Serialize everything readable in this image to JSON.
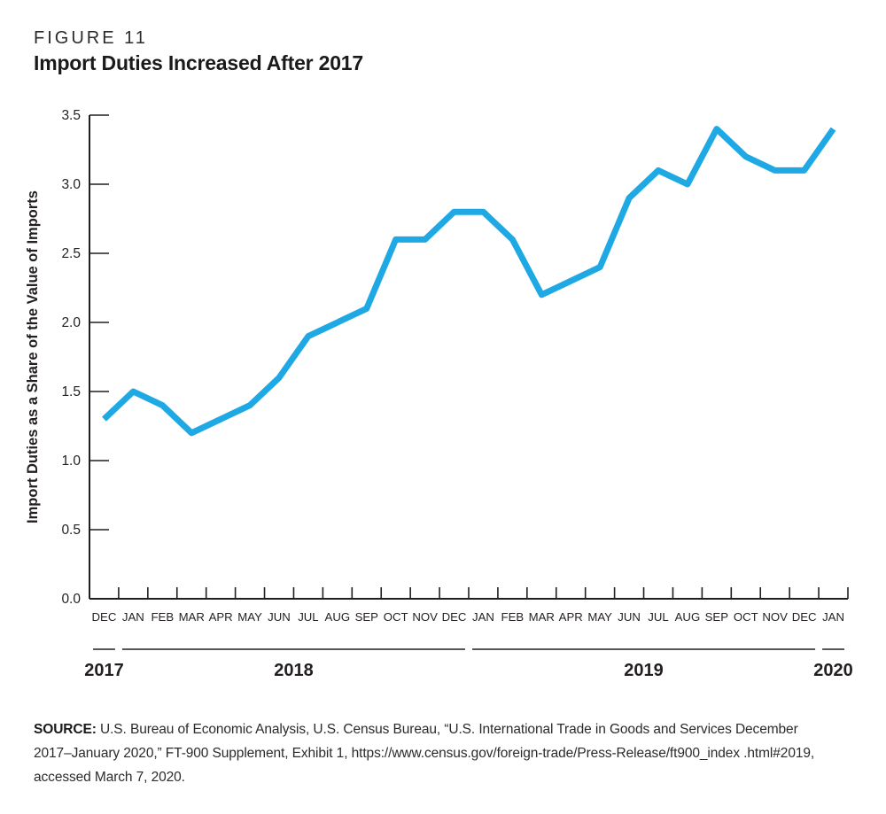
{
  "figure": {
    "label": "FIGURE 11",
    "title": "Import Duties Increased After 2017"
  },
  "source": {
    "label": "SOURCE:",
    "text": "U.S. Bureau of Economic Analysis, U.S. Census Bureau, “U.S. International Trade in Goods and Services December 2017–January 2020,” FT-900 Supplement, Exhibit 1, https://www.census.gov/foreign-trade/Press-Release/ft900_index .html#2019, accessed March 7, 2020."
  },
  "colors": {
    "line": "#1FA9E4",
    "axis": "#231F20",
    "text": "#231F20"
  },
  "chart_data": {
    "type": "line",
    "title": "Import Duties Increased After 2017",
    "xlabel": "",
    "ylabel": "Import Duties as a Share of the Value of Imports",
    "ylim": [
      0.0,
      3.5
    ],
    "ytick_step": 0.5,
    "ytick_labels": [
      "0.0",
      "0.5",
      "1.0",
      "1.5",
      "2.0",
      "2.5",
      "3.0",
      "3.5"
    ],
    "grid": false,
    "legend": "none",
    "categories": [
      "DEC",
      "JAN",
      "FEB",
      "MAR",
      "APR",
      "MAY",
      "JUN",
      "JUL",
      "AUG",
      "SEP",
      "OCT",
      "NOV",
      "DEC",
      "JAN",
      "FEB",
      "MAR",
      "APR",
      "MAY",
      "JUN",
      "JUL",
      "AUG",
      "SEP",
      "OCT",
      "NOV",
      "DEC",
      "JAN"
    ],
    "year_groups": [
      {
        "label": "2017",
        "start": 0,
        "end": 0
      },
      {
        "label": "2018",
        "start": 1,
        "end": 12
      },
      {
        "label": "2019",
        "start": 13,
        "end": 24
      },
      {
        "label": "2020",
        "start": 25,
        "end": 25
      }
    ],
    "series": [
      {
        "name": "Import duties as a share of the value of imports",
        "color": "#1FA9E4",
        "values": [
          1.3,
          1.5,
          1.4,
          1.2,
          1.3,
          1.4,
          1.6,
          1.9,
          2.0,
          2.1,
          2.6,
          2.6,
          2.8,
          2.8,
          2.6,
          2.2,
          2.3,
          2.4,
          2.9,
          3.1,
          3.0,
          3.4,
          3.2,
          3.1,
          3.1,
          3.4
        ]
      }
    ]
  }
}
